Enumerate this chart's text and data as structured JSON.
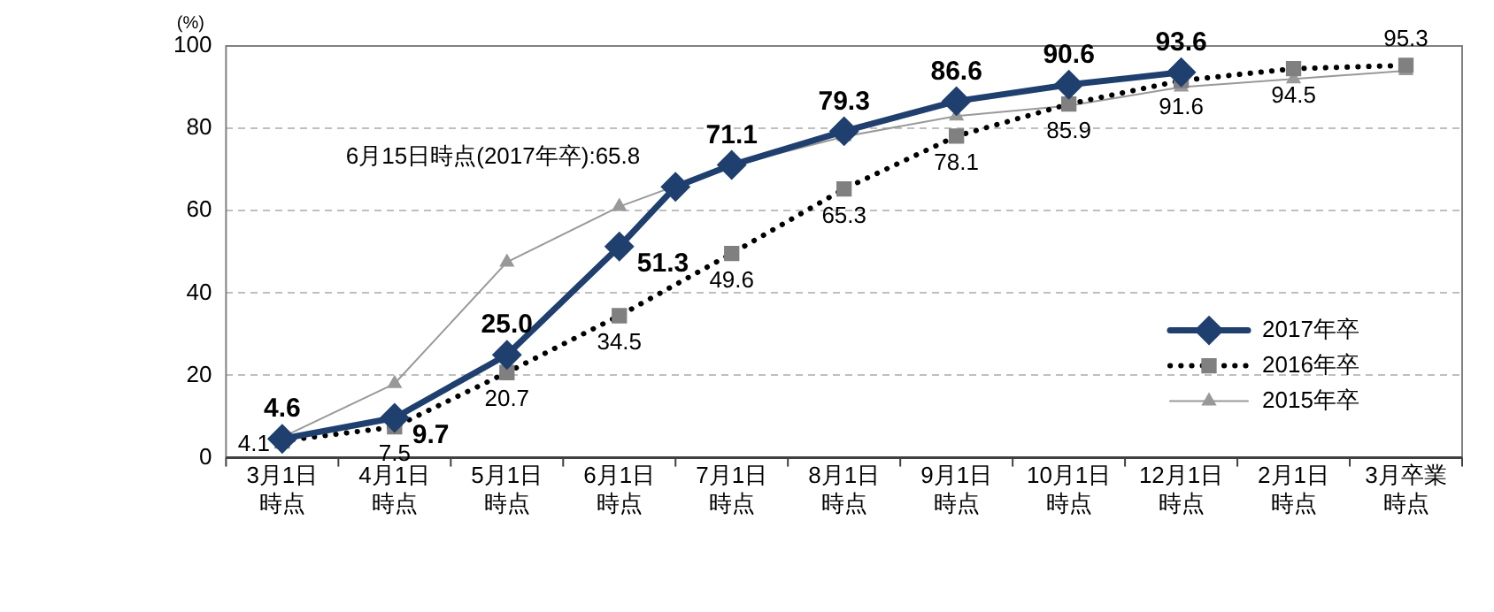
{
  "chart_data": {
    "type": "line",
    "ylabel": "(%)",
    "categories": [
      "3月1日時点",
      "4月1日時点",
      "5月1日時点",
      "6月1日時点",
      null,
      "7月1日時点",
      "8月1日時点",
      "9月1日時点",
      "10月1日時点",
      "12月1日時点",
      "2月1日時点",
      "3月卒業時点"
    ],
    "series": [
      {
        "name": "2017年卒",
        "color": "#1f3f6e",
        "marker": "diamond",
        "line_style": "solid",
        "values": [
          4.6,
          9.7,
          25.0,
          51.3,
          65.8,
          71.1,
          79.3,
          86.6,
          90.6,
          93.6,
          null,
          null
        ],
        "value_labels": [
          "4.6",
          "9.7",
          "25.0",
          "51.3",
          null,
          "71.1",
          "79.3",
          "86.6",
          "90.6",
          "93.6",
          null,
          null
        ]
      },
      {
        "name": "2016年卒",
        "color": "#808080",
        "marker": "square",
        "line_style": "dotted",
        "values": [
          4.1,
          7.5,
          20.7,
          34.5,
          null,
          49.6,
          65.3,
          78.1,
          85.9,
          91.6,
          94.5,
          95.3
        ],
        "value_labels": [
          "4.1",
          "7.5",
          "20.7",
          "34.5",
          null,
          "49.6",
          "65.3",
          "78.1",
          "85.9",
          "91.6",
          "94.5",
          "95.3"
        ]
      },
      {
        "name": "2015年卒",
        "color": "#999999",
        "marker": "triangle",
        "line_style": "solid",
        "values": [
          5,
          18,
          47.5,
          61,
          null,
          71,
          78,
          83,
          85.5,
          90,
          92,
          94
        ]
      }
    ],
    "annotations": [
      "6月15日時点(2017年卒):65.8"
    ],
    "ylim": [
      0,
      100
    ],
    "yticks": [
      0,
      20,
      40,
      60,
      80,
      100
    ],
    "grid": "y",
    "legend": "bottom right"
  }
}
